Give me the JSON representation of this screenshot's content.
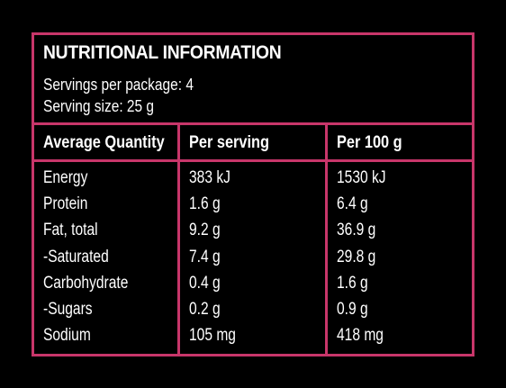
{
  "panel": {
    "title": "NUTRITIONAL INFORMATION",
    "servings_per_package": "Servings per package: 4",
    "serving_size": "Serving size: 25 g"
  },
  "table": {
    "headers": [
      "Average Quantity",
      "Per serving",
      "Per 100 g"
    ],
    "rows": [
      [
        "Energy",
        "383 kJ",
        "1530 kJ"
      ],
      [
        "Protein",
        "1.6 g",
        "6.4 g"
      ],
      [
        "Fat, total",
        "9.2 g",
        "36.9 g"
      ],
      [
        "-Saturated",
        "7.4 g",
        "29.8 g"
      ],
      [
        "Carbohydrate",
        "0.4 g",
        "1.6 g"
      ],
      [
        "-Sugars",
        "0.2 g",
        "0.9 g"
      ],
      [
        "Sodium",
        "105 mg",
        "418 mg"
      ]
    ]
  },
  "colors": {
    "background": "#000000",
    "border": "#c8366a",
    "text": "#ffffff"
  }
}
